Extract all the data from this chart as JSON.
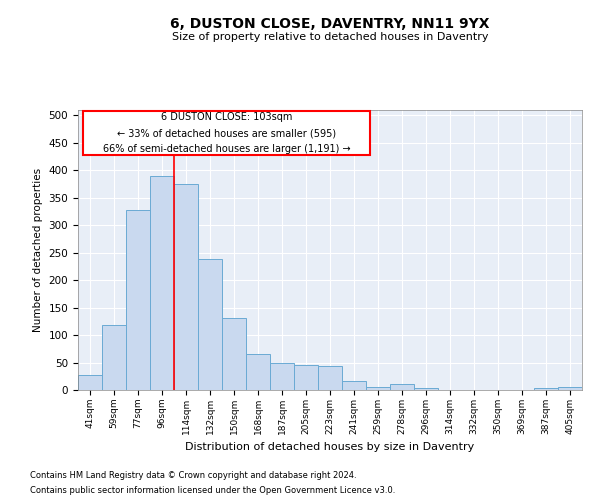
{
  "title": "6, DUSTON CLOSE, DAVENTRY, NN11 9YX",
  "subtitle": "Size of property relative to detached houses in Daventry",
  "xlabel": "Distribution of detached houses by size in Daventry",
  "ylabel": "Number of detached properties",
  "categories": [
    "41sqm",
    "59sqm",
    "77sqm",
    "96sqm",
    "114sqm",
    "132sqm",
    "150sqm",
    "168sqm",
    "187sqm",
    "205sqm",
    "223sqm",
    "241sqm",
    "259sqm",
    "278sqm",
    "296sqm",
    "314sqm",
    "332sqm",
    "350sqm",
    "369sqm",
    "387sqm",
    "405sqm"
  ],
  "values": [
    28,
    118,
    328,
    390,
    375,
    238,
    132,
    65,
    50,
    45,
    43,
    17,
    5,
    11,
    4,
    0,
    0,
    0,
    0,
    3,
    5
  ],
  "bar_color": "#c9d9ef",
  "bar_edge_color": "#6aaad4",
  "background_color": "#e8eef7",
  "grid_color": "#ffffff",
  "red_line_x": 3.5,
  "annotation_text": "6 DUSTON CLOSE: 103sqm\n← 33% of detached houses are smaller (595)\n66% of semi-detached houses are larger (1,191) →",
  "ylim": [
    0,
    510
  ],
  "yticks": [
    0,
    50,
    100,
    150,
    200,
    250,
    300,
    350,
    400,
    450,
    500
  ],
  "footer_line1": "Contains HM Land Registry data © Crown copyright and database right 2024.",
  "footer_line2": "Contains public sector information licensed under the Open Government Licence v3.0."
}
